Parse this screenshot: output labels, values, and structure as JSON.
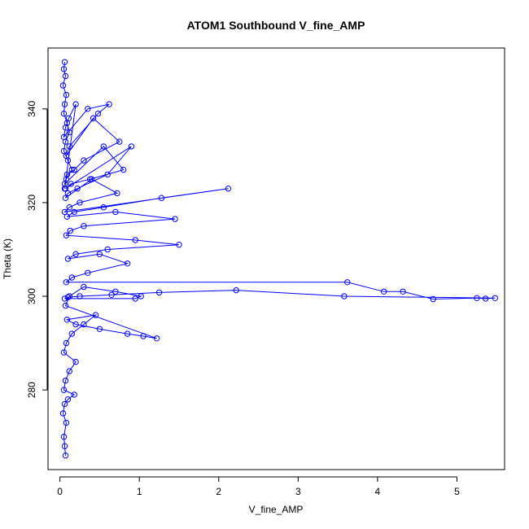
{
  "chart_data": {
    "type": "line",
    "title": "ATOM1 Southbound V_fine_AMP",
    "xlabel": "V_fine_AMP",
    "ylabel": "Theta (K)",
    "xlim": [
      -0.15,
      5.6
    ],
    "ylim": [
      263,
      353
    ],
    "xticks": [
      0,
      1,
      2,
      3,
      4,
      5
    ],
    "yticks": [
      280,
      300,
      320,
      340
    ],
    "grid": false,
    "legend": "none",
    "series_color": "#0000ff",
    "marker": "open-circle",
    "series": [
      {
        "x": [
          0.06,
          0.05,
          0.07,
          0.04,
          0.08,
          0.06,
          0.05,
          0.09,
          0.12,
          0.07,
          0.05,
          0.1,
          0.15,
          0.08,
          0.06,
          0.2,
          0.11,
          0.07,
          0.05,
          0.35,
          0.62,
          0.48,
          0.12,
          0.08,
          0.42,
          0.75,
          0.3,
          0.18,
          0.09,
          0.06,
          0.55,
          0.8,
          0.38,
          0.14,
          0.07,
          0.9,
          0.6,
          0.22,
          0.1,
          0.07,
          0.4,
          0.72,
          0.25,
          0.12,
          0.06,
          2.12,
          1.28,
          0.55,
          0.18,
          0.09,
          0.7,
          1.45,
          0.3,
          0.13,
          0.08,
          0.95,
          1.5,
          0.6,
          0.2,
          0.1,
          0.5,
          0.85,
          0.35,
          0.15,
          0.08,
          3.62,
          4.08,
          4.32,
          4.7,
          5.25,
          5.36,
          5.48,
          3.58,
          2.22,
          1.25,
          0.65,
          0.25,
          0.1,
          0.06,
          0.95,
          1.02,
          0.7,
          0.3,
          0.12,
          0.07,
          1.22,
          1.05,
          0.85,
          0.5,
          0.2,
          0.09,
          0.45,
          0.3,
          0.15,
          0.08,
          0.05,
          0.2,
          0.12,
          0.07,
          0.05,
          0.18,
          0.1,
          0.06,
          0.04,
          0.08,
          0.05,
          0.06,
          0.07
        ],
        "y": [
          350,
          348.5,
          347,
          345,
          343,
          341,
          339,
          337,
          335,
          333,
          331,
          329,
          327,
          325,
          323,
          341,
          338,
          336,
          334,
          340,
          341,
          339,
          332,
          330,
          338,
          333,
          329,
          327,
          326,
          324,
          332,
          327,
          325,
          324,
          323,
          332,
          326,
          323,
          322,
          321,
          325,
          322,
          320,
          319,
          318,
          323,
          321,
          319,
          318,
          317,
          318,
          316.5,
          315,
          314,
          313,
          312,
          311,
          310,
          309,
          308,
          309,
          307,
          305,
          304,
          303,
          303,
          301,
          301,
          299.4,
          299.6,
          299.5,
          299.6,
          300,
          301.3,
          300.8,
          300.3,
          300,
          299.8,
          299.5,
          299.5,
          300,
          301,
          302,
          300,
          298,
          291,
          291.5,
          292,
          293,
          294,
          295,
          296,
          294,
          292,
          290,
          288,
          286,
          284,
          282,
          280,
          279,
          278,
          277,
          275,
          273,
          270,
          268,
          266
        ]
      }
    ]
  }
}
